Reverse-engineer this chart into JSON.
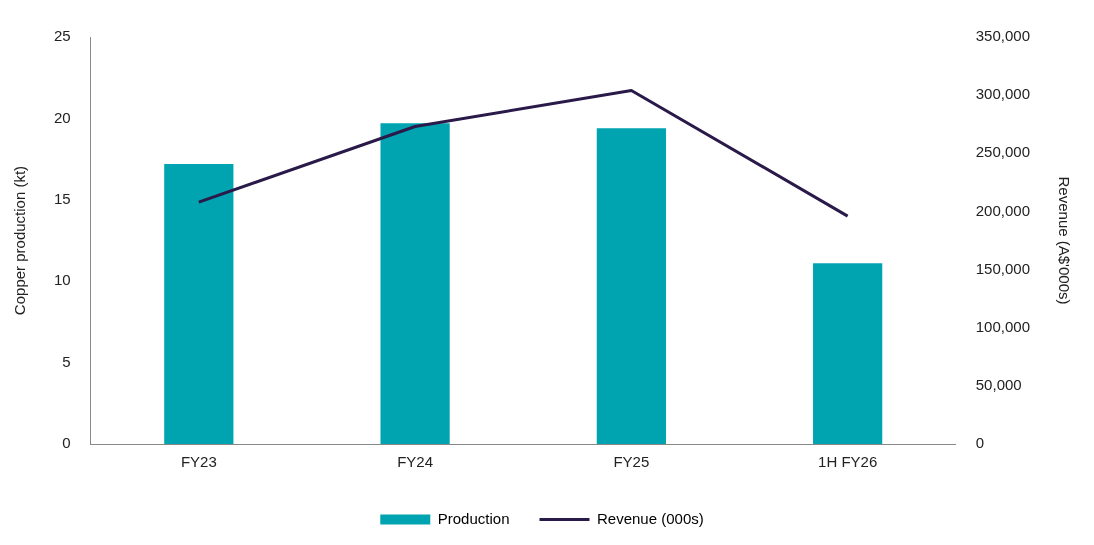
{
  "chart_data": {
    "type": "bar",
    "categories": [
      "FY23",
      "FY24",
      "FY25",
      "1H FY26"
    ],
    "series": [
      {
        "name": "Production",
        "color": "#00a3b0",
        "values": [
          17.2,
          19.7,
          19.4,
          11.1
        ]
      },
      {
        "name": "Revenue (000s)",
        "type": "line",
        "axis": "y2",
        "color": "#2a1a4a",
        "values": [
          208000,
          273000,
          304000,
          196000
        ]
      }
    ],
    "ylabel": "Copper production (kt)",
    "y2label": "Revenue (A$'000s)",
    "ylim": [
      0,
      25
    ],
    "yticks": [
      0,
      5,
      10,
      15,
      20,
      25
    ],
    "y2lim": [
      0,
      350000
    ],
    "y2ticks": [
      {
        "value": 0,
        "label": "0"
      },
      {
        "value": 50000,
        "label": "50,000"
      },
      {
        "value": 100000,
        "label": "100,000"
      },
      {
        "value": 150000,
        "label": "150,000"
      },
      {
        "value": 200000,
        "label": "200,000"
      },
      {
        "value": 250000,
        "label": "250,000"
      },
      {
        "value": 300000,
        "label": "300,000"
      },
      {
        "value": 350000,
        "label": "350,000"
      }
    ],
    "grid": false,
    "legend": "bottom",
    "marker": "none"
  }
}
